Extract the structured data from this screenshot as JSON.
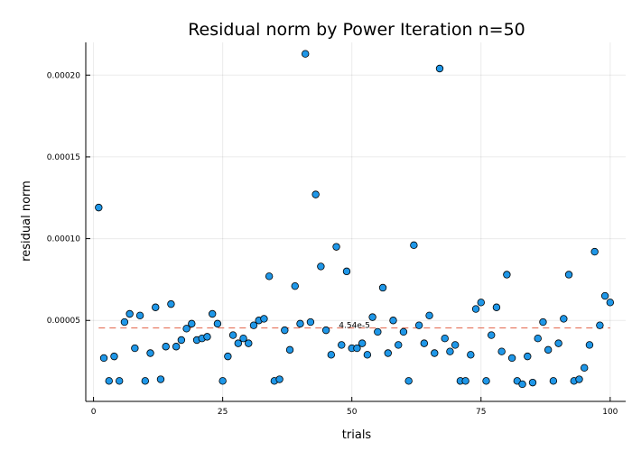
{
  "chart_data": {
    "type": "scatter",
    "title": "Residual norm by Power Iteration  n=50",
    "xlabel": "trials",
    "ylabel": "residual norm",
    "xlim": [
      -1.5,
      103
    ],
    "ylim": [
      5e-07,
      0.00022
    ],
    "x_ticks": [
      0,
      25,
      50,
      75,
      100
    ],
    "x_tick_labels": [
      "0",
      "25",
      "50",
      "75",
      "100"
    ],
    "y_ticks": [
      5e-05,
      0.0001,
      0.00015,
      0.0002
    ],
    "y_tick_labels": [
      "0.00005",
      "0.00010",
      "0.00015",
      "0.00020"
    ],
    "grid": true,
    "legend": "none",
    "marker_color": "#1f97e8",
    "marker_edge_color": "#000000",
    "mean_line_color": "#e5735b",
    "mean_value": 4.54e-05,
    "mean_label": "4.54e-5",
    "series": [
      {
        "x": [
          1,
          2,
          3,
          4,
          5,
          6,
          7,
          8,
          9,
          10,
          11,
          12,
          13,
          14,
          15,
          16,
          17,
          18,
          19,
          20,
          21,
          22,
          23,
          24,
          25,
          26,
          27,
          28,
          29,
          30,
          31,
          32,
          33,
          34,
          35,
          36,
          37,
          38,
          39,
          40,
          41,
          42,
          43,
          44,
          45,
          46,
          47,
          48,
          49,
          50,
          51,
          52,
          53,
          54,
          55,
          56,
          57,
          58,
          59,
          60,
          61,
          62,
          63,
          64,
          65,
          66,
          67,
          68,
          69,
          70,
          71,
          72,
          73,
          74,
          75,
          76,
          77,
          78,
          79,
          80,
          81,
          82,
          83,
          84,
          85,
          86,
          87,
          88,
          89,
          90,
          91,
          92,
          93,
          94,
          95,
          96,
          97,
          98,
          99,
          100
        ],
        "y": [
          0.000119,
          2.7e-05,
          1.3e-05,
          2.8e-05,
          1.3e-05,
          4.9e-05,
          5.4e-05,
          3.3e-05,
          5.3e-05,
          1.3e-05,
          3e-05,
          5.8e-05,
          1.4e-05,
          3.4e-05,
          6e-05,
          3.4e-05,
          3.8e-05,
          4.5e-05,
          4.8e-05,
          3.8e-05,
          3.9e-05,
          4e-05,
          5.4e-05,
          4.8e-05,
          1.3e-05,
          2.8e-05,
          4.1e-05,
          3.6e-05,
          3.9e-05,
          3.6e-05,
          4.7e-05,
          5e-05,
          5.1e-05,
          7.7e-05,
          1.3e-05,
          1.4e-05,
          4.4e-05,
          3.2e-05,
          7.1e-05,
          4.8e-05,
          0.000213,
          4.9e-05,
          0.000127,
          8.3e-05,
          4.4e-05,
          2.9e-05,
          9.5e-05,
          3.5e-05,
          8e-05,
          3.3e-05,
          3.3e-05,
          3.6e-05,
          2.9e-05,
          5.2e-05,
          4.3e-05,
          7e-05,
          3e-05,
          5e-05,
          3.5e-05,
          4.3e-05,
          1.3e-05,
          9.6e-05,
          4.7e-05,
          3.6e-05,
          5.3e-05,
          3e-05,
          0.000204,
          3.9e-05,
          3.1e-05,
          3.5e-05,
          1.3e-05,
          1.3e-05,
          2.9e-05,
          5.7e-05,
          6.1e-05,
          1.3e-05,
          4.1e-05,
          5.8e-05,
          3.1e-05,
          7.8e-05,
          2.7e-05,
          1.3e-05,
          1.1e-05,
          2.8e-05,
          1.2e-05,
          3.9e-05,
          4.9e-05,
          3.2e-05,
          1.3e-05,
          3.6e-05,
          5.1e-05,
          7.8e-05,
          1.3e-05,
          1.4e-05,
          2.1e-05,
          3.5e-05,
          9.2e-05,
          4.7e-05,
          6.5e-05,
          6.1e-05
        ]
      }
    ]
  }
}
